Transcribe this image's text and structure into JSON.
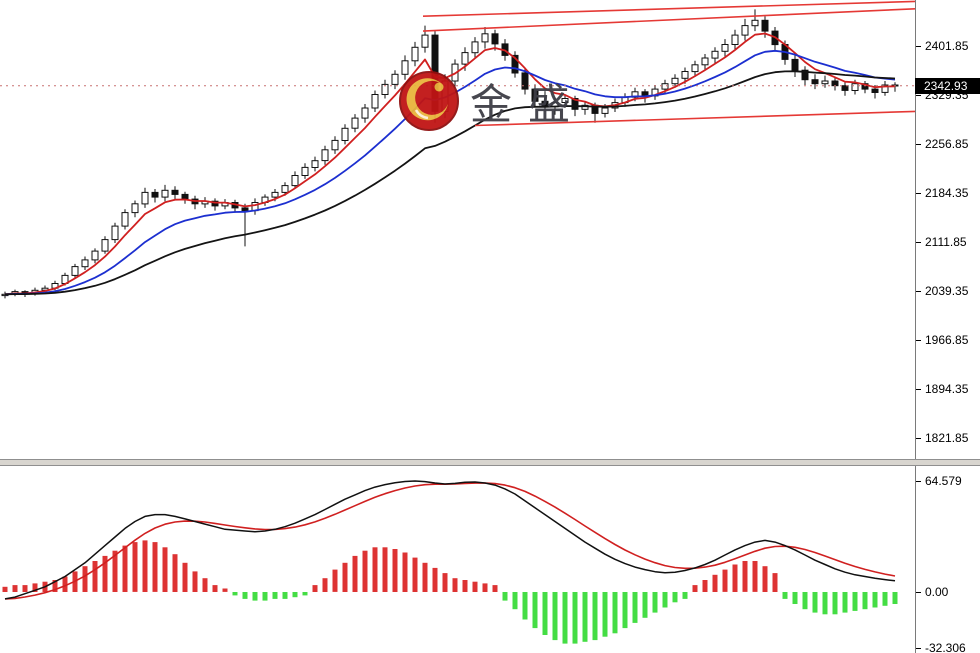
{
  "watermark": {
    "text": "金盛"
  },
  "price_axis": {
    "labels": [
      "2401.85",
      "2329.35",
      "2256.85",
      "2184.35",
      "2111.85",
      "2039.35",
      "1966.85",
      "1894.35",
      "1821.85"
    ],
    "current_price": "2342.93"
  },
  "indicator_axis": {
    "labels": [
      "64.579",
      "0.00",
      "-32.306"
    ]
  },
  "colors": {
    "candle_outline": "#111111",
    "candle_up_fill": "#ffffff",
    "candle_down_fill": "#111111",
    "ma_fast": "#d02020",
    "ma_mid": "#1c2fd0",
    "ma_slow": "#141414",
    "trendline": "#e53935",
    "hist_positive": "#dd3333",
    "hist_negative": "#44dd44",
    "macd_line": "#111111",
    "signal_line": "#d02020",
    "current_price_line": "#c87070",
    "badge_bg": "#000000",
    "badge_text": "#ffffff"
  },
  "chart_data": [
    {
      "type": "candlestick",
      "title": "",
      "ylabel": "",
      "ylim": [
        1790,
        2470
      ],
      "y_ticks": [
        2401.85,
        2329.35,
        2256.85,
        2184.35,
        2111.85,
        2039.35,
        1966.85,
        1894.35,
        1821.85
      ],
      "current_price": 2342.93,
      "grid": false,
      "candles": [
        [
          2032,
          2038,
          2028,
          2034
        ],
        [
          2034,
          2041,
          2031,
          2038
        ],
        [
          2038,
          2040,
          2030,
          2035
        ],
        [
          2035,
          2044,
          2032,
          2040
        ],
        [
          2040,
          2047,
          2036,
          2043
        ],
        [
          2043,
          2054,
          2040,
          2050
        ],
        [
          2050,
          2066,
          2047,
          2062
        ],
        [
          2062,
          2079,
          2058,
          2075
        ],
        [
          2075,
          2090,
          2070,
          2085
        ],
        [
          2085,
          2102,
          2080,
          2098
        ],
        [
          2098,
          2120,
          2094,
          2115
        ],
        [
          2115,
          2140,
          2110,
          2135
        ],
        [
          2135,
          2160,
          2130,
          2155
        ],
        [
          2155,
          2173,
          2148,
          2168
        ],
        [
          2168,
          2192,
          2162,
          2185
        ],
        [
          2185,
          2190,
          2170,
          2178
        ],
        [
          2178,
          2196,
          2172,
          2188
        ],
        [
          2188,
          2194,
          2175,
          2182
        ],
        [
          2182,
          2186,
          2168,
          2175
        ],
        [
          2175,
          2180,
          2160,
          2168
        ],
        [
          2168,
          2178,
          2162,
          2172
        ],
        [
          2172,
          2176,
          2158,
          2165
        ],
        [
          2165,
          2175,
          2160,
          2170
        ],
        [
          2170,
          2174,
          2155,
          2162
        ],
        [
          2162,
          2168,
          2105,
          2158
        ],
        [
          2158,
          2176,
          2152,
          2170
        ],
        [
          2170,
          2182,
          2165,
          2178
        ],
        [
          2178,
          2190,
          2172,
          2185
        ],
        [
          2185,
          2200,
          2180,
          2195
        ],
        [
          2195,
          2216,
          2190,
          2210
        ],
        [
          2210,
          2228,
          2205,
          2222
        ],
        [
          2222,
          2238,
          2216,
          2232
        ],
        [
          2232,
          2254,
          2226,
          2248
        ],
        [
          2248,
          2268,
          2242,
          2262
        ],
        [
          2262,
          2286,
          2256,
          2280
        ],
        [
          2280,
          2301,
          2274,
          2295
        ],
        [
          2295,
          2316,
          2288,
          2310
        ],
        [
          2310,
          2336,
          2304,
          2330
        ],
        [
          2330,
          2352,
          2324,
          2345
        ],
        [
          2345,
          2366,
          2338,
          2360
        ],
        [
          2360,
          2388,
          2352,
          2380
        ],
        [
          2380,
          2408,
          2372,
          2400
        ],
        [
          2400,
          2432,
          2392,
          2418
        ],
        [
          2418,
          2424,
          2288,
          2305
        ],
        [
          2305,
          2360,
          2295,
          2350
        ],
        [
          2350,
          2382,
          2340,
          2375
        ],
        [
          2375,
          2400,
          2365,
          2392
        ],
        [
          2392,
          2415,
          2384,
          2408
        ],
        [
          2408,
          2430,
          2398,
          2420
        ],
        [
          2420,
          2426,
          2395,
          2405
        ],
        [
          2405,
          2412,
          2380,
          2388
        ],
        [
          2388,
          2394,
          2355,
          2362
        ],
        [
          2362,
          2370,
          2330,
          2338
        ],
        [
          2338,
          2345,
          2312,
          2320
        ],
        [
          2320,
          2335,
          2305,
          2312
        ],
        [
          2312,
          2326,
          2300,
          2318
        ],
        [
          2318,
          2330,
          2310,
          2324
        ],
        [
          2324,
          2328,
          2298,
          2308
        ],
        [
          2308,
          2320,
          2300,
          2314
        ],
        [
          2314,
          2318,
          2288,
          2302
        ],
        [
          2302,
          2316,
          2296,
          2310
        ],
        [
          2310,
          2324,
          2304,
          2318
        ],
        [
          2318,
          2332,
          2312,
          2326
        ],
        [
          2326,
          2340,
          2320,
          2334
        ],
        [
          2334,
          2338,
          2318,
          2328
        ],
        [
          2328,
          2344,
          2322,
          2338
        ],
        [
          2338,
          2352,
          2330,
          2346
        ],
        [
          2346,
          2360,
          2340,
          2354
        ],
        [
          2354,
          2370,
          2346,
          2364
        ],
        [
          2364,
          2380,
          2356,
          2374
        ],
        [
          2374,
          2390,
          2366,
          2384
        ],
        [
          2384,
          2400,
          2376,
          2394
        ],
        [
          2394,
          2412,
          2386,
          2404
        ],
        [
          2404,
          2426,
          2396,
          2418
        ],
        [
          2418,
          2442,
          2410,
          2432
        ],
        [
          2432,
          2456,
          2424,
          2440
        ],
        [
          2440,
          2446,
          2414,
          2424
        ],
        [
          2424,
          2430,
          2396,
          2404
        ],
        [
          2404,
          2410,
          2374,
          2382
        ],
        [
          2382,
          2390,
          2356,
          2366
        ],
        [
          2366,
          2372,
          2344,
          2352
        ],
        [
          2352,
          2360,
          2338,
          2346
        ],
        [
          2346,
          2358,
          2340,
          2350
        ],
        [
          2350,
          2356,
          2336,
          2343
        ],
        [
          2343,
          2350,
          2328,
          2336
        ],
        [
          2336,
          2352,
          2330,
          2346
        ],
        [
          2346,
          2350,
          2332,
          2338
        ],
        [
          2338,
          2344,
          2324,
          2333
        ],
        [
          2333,
          2350,
          2328,
          2344
        ],
        [
          2344,
          2348,
          2334,
          2342.93
        ]
      ],
      "overlays": [
        {
          "name": "ma-fast-line",
          "type": "ema",
          "period": 5,
          "color_key": "ma_fast"
        },
        {
          "name": "ma-mid-line",
          "type": "ema",
          "period": 13,
          "color_key": "ma_mid"
        },
        {
          "name": "ma-slow-line",
          "type": "ema",
          "period": 30,
          "color_key": "ma_slow"
        }
      ],
      "trendlines": [
        {
          "i1": 41.8,
          "p1": 2446,
          "i2": 91,
          "p2": 2468
        },
        {
          "i1": 41.8,
          "p1": 2424,
          "i2": 91,
          "p2": 2457
        },
        {
          "i1": 47,
          "p1": 2284,
          "i2": 91,
          "p2": 2305
        }
      ]
    },
    {
      "type": "macd",
      "title": "",
      "ylim": [
        -35.5,
        73.3
      ],
      "y_ticks": [
        64.579,
        0,
        -32.306
      ],
      "grid": false,
      "signal_period": 6,
      "histogram": [
        3,
        4,
        4,
        5,
        6,
        7,
        9,
        12,
        15,
        18,
        21,
        24,
        27,
        29,
        30,
        29,
        26,
        22,
        17,
        12,
        8,
        4,
        2,
        -2,
        -4,
        -5,
        -5,
        -4,
        -4,
        -3,
        -2,
        4,
        8,
        13,
        17,
        21,
        24,
        26,
        26,
        25,
        23,
        20,
        17,
        14,
        11,
        8,
        7,
        6,
        5,
        4,
        -5,
        -10,
        -16,
        -21,
        -25,
        -28,
        -30,
        -30,
        -29,
        -28,
        -26,
        -24,
        -21,
        -18,
        -15,
        -12,
        -9,
        -6,
        -4,
        4,
        7,
        10,
        13,
        16,
        18,
        18,
        15,
        11,
        -4,
        -7,
        -10,
        -12,
        -13,
        -13,
        -12,
        -11,
        -10,
        -9,
        -8,
        -7
      ],
      "macd_line": [
        -4,
        -3,
        -1,
        1,
        3,
        6,
        9,
        13,
        17,
        22,
        27,
        32,
        37,
        41,
        44,
        45,
        45,
        44,
        42.5,
        41,
        39.5,
        38,
        36.5,
        36,
        35.5,
        35,
        35.5,
        36.5,
        38,
        40,
        42.5,
        45,
        48,
        51,
        54,
        56.5,
        59,
        61,
        62.5,
        63.5,
        64.3,
        64.6,
        64.2,
        63.4,
        62.8,
        63.2,
        63.8,
        64,
        63.4,
        62.2,
        60,
        57,
        53,
        49,
        45,
        41,
        37,
        33,
        29,
        25.5,
        22,
        19,
        16.5,
        14.5,
        13,
        11.8,
        11.2,
        11.5,
        12.5,
        14,
        16,
        18.5,
        21.5,
        24.5,
        27,
        29,
        30,
        29,
        27,
        24.5,
        21.5,
        18.5,
        16,
        13.5,
        11.5,
        10,
        9,
        8,
        7.2,
        6.5
      ]
    }
  ]
}
